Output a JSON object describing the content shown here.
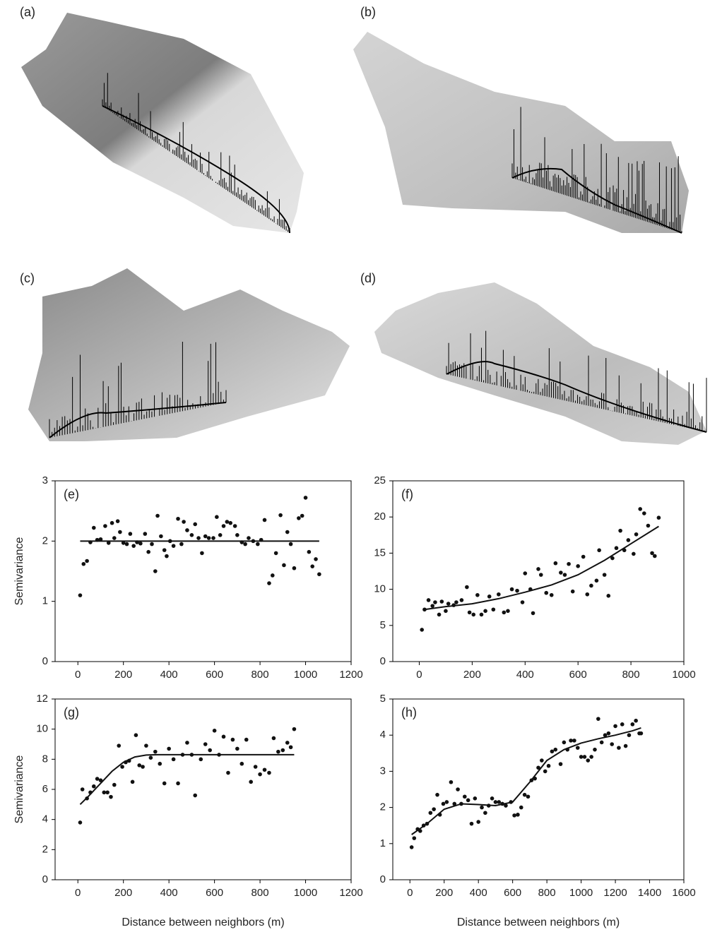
{
  "illustrations": [
    {
      "label": "(a)"
    },
    {
      "label": "(b)"
    },
    {
      "label": "(c)"
    },
    {
      "label": "(d)"
    }
  ],
  "chart_data": [
    {
      "type": "scatter",
      "panel_label": "(e)",
      "y_label": "Semivariance",
      "color": "#111111",
      "xlim": [
        -100,
        1200
      ],
      "xticks": [
        0,
        200,
        400,
        600,
        800,
        1000,
        1200
      ],
      "ylim": [
        0,
        3
      ],
      "yticks": [
        0,
        1,
        2,
        3
      ],
      "points": {
        "x": [
          10,
          25,
          40,
          55,
          70,
          85,
          100,
          120,
          135,
          150,
          160,
          175,
          185,
          200,
          215,
          230,
          245,
          260,
          275,
          295,
          310,
          325,
          340,
          350,
          365,
          380,
          390,
          405,
          420,
          440,
          455,
          465,
          480,
          500,
          515,
          530,
          545,
          560,
          575,
          595,
          610,
          625,
          640,
          655,
          670,
          690,
          700,
          720,
          735,
          750,
          770,
          790,
          805,
          820,
          840,
          855,
          870,
          890,
          905,
          920,
          935,
          950,
          970,
          985,
          1000,
          1015,
          1030,
          1045,
          1060
        ],
        "y": [
          1.1,
          1.62,
          1.67,
          1.98,
          2.22,
          2.02,
          2.03,
          2.25,
          1.97,
          2.3,
          2.05,
          2.33,
          2.15,
          1.97,
          1.95,
          2.12,
          1.92,
          1.98,
          1.96,
          2.12,
          1.82,
          1.95,
          1.5,
          2.42,
          2.08,
          1.85,
          1.75,
          2.0,
          1.92,
          2.37,
          1.95,
          2.32,
          2.18,
          2.1,
          2.28,
          2.05,
          1.8,
          2.08,
          2.05,
          2.05,
          2.4,
          2.1,
          2.25,
          2.32,
          2.3,
          2.25,
          2.1,
          1.98,
          1.95,
          2.05,
          2.0,
          1.95,
          2.02,
          2.35,
          1.3,
          1.43,
          1.8,
          2.43,
          1.6,
          2.15,
          1.95,
          1.55,
          2.38,
          2.42,
          2.72,
          1.82,
          1.58,
          1.7,
          1.45
        ]
      },
      "fit": {
        "x": [
          10,
          1060
        ],
        "y": [
          2.0,
          2.0
        ]
      }
    },
    {
      "type": "scatter",
      "panel_label": "(f)",
      "color": "#111111",
      "xlim": [
        -100,
        1000
      ],
      "xticks": [
        0,
        200,
        400,
        600,
        800,
        1000
      ],
      "ylim": [
        0,
        25
      ],
      "yticks": [
        0,
        5,
        10,
        15,
        20,
        25
      ],
      "points": {
        "x": [
          10,
          20,
          35,
          50,
          60,
          75,
          85,
          100,
          110,
          130,
          140,
          160,
          180,
          190,
          205,
          220,
          235,
          250,
          265,
          280,
          300,
          320,
          335,
          350,
          370,
          390,
          400,
          420,
          430,
          450,
          460,
          480,
          500,
          515,
          535,
          550,
          565,
          580,
          600,
          620,
          635,
          650,
          670,
          680,
          700,
          715,
          730,
          745,
          760,
          775,
          790,
          810,
          820,
          835,
          850,
          865,
          880,
          890,
          905
        ],
        "y": [
          4.4,
          7.2,
          8.5,
          7.7,
          8.2,
          6.5,
          8.3,
          7.0,
          8.0,
          7.8,
          8.2,
          8.5,
          10.3,
          6.8,
          6.5,
          9.2,
          6.5,
          7.0,
          9.0,
          7.2,
          9.3,
          6.8,
          7.0,
          10.0,
          9.8,
          8.2,
          12.2,
          10.0,
          6.7,
          12.8,
          12.0,
          9.5,
          9.2,
          13.6,
          12.3,
          12.0,
          13.5,
          9.7,
          13.2,
          14.5,
          9.3,
          10.5,
          11.2,
          15.4,
          12.0,
          9.1,
          14.3,
          15.7,
          18.1,
          15.4,
          16.8,
          14.9,
          17.6,
          21.1,
          20.5,
          18.8,
          15.0,
          14.6,
          19.9
        ]
      },
      "fit": {
        "x": [
          20,
          100,
          200,
          300,
          400,
          500,
          600,
          700,
          800,
          905
        ],
        "y": [
          7.2,
          7.6,
          8.0,
          8.7,
          9.6,
          10.6,
          12.0,
          14.0,
          16.3,
          18.7
        ]
      }
    },
    {
      "type": "scatter",
      "panel_label": "(g)",
      "y_label": "Semivariance",
      "x_label": "Distance between neighbors (m)",
      "color": "#111111",
      "xlim": [
        -100,
        1200
      ],
      "xticks": [
        0,
        200,
        400,
        600,
        800,
        1000,
        1200
      ],
      "ylim": [
        0,
        12
      ],
      "yticks": [
        0,
        2,
        4,
        6,
        8,
        10,
        12
      ],
      "points": {
        "x": [
          10,
          20,
          40,
          55,
          70,
          85,
          100,
          115,
          130,
          145,
          160,
          180,
          195,
          210,
          225,
          240,
          255,
          270,
          285,
          300,
          320,
          340,
          360,
          380,
          400,
          420,
          440,
          460,
          480,
          500,
          515,
          540,
          560,
          580,
          600,
          620,
          640,
          660,
          680,
          700,
          720,
          740,
          760,
          780,
          800,
          820,
          840,
          860,
          880,
          900,
          920,
          935,
          950
        ],
        "y": [
          3.8,
          6.0,
          5.4,
          5.8,
          6.2,
          6.7,
          6.6,
          5.8,
          5.8,
          5.5,
          6.3,
          8.9,
          7.5,
          7.8,
          7.9,
          6.5,
          9.6,
          7.6,
          7.5,
          8.9,
          8.1,
          8.5,
          7.7,
          6.4,
          8.7,
          8.0,
          6.4,
          8.3,
          9.1,
          8.3,
          5.6,
          8.0,
          9.0,
          8.6,
          9.9,
          8.3,
          9.5,
          7.1,
          9.3,
          8.7,
          7.7,
          9.3,
          6.5,
          7.5,
          7.0,
          7.3,
          7.1,
          9.4,
          8.5,
          8.6,
          9.1,
          8.8,
          10.0
        ]
      },
      "fit": {
        "x": [
          10,
          50,
          100,
          150,
          200,
          250,
          300,
          350,
          400,
          950
        ],
        "y": [
          5.0,
          5.6,
          6.4,
          7.2,
          7.8,
          8.15,
          8.28,
          8.3,
          8.3,
          8.3
        ]
      }
    },
    {
      "type": "scatter",
      "panel_label": "(h)",
      "x_label": "Distance between neighbors (m)",
      "color": "#111111",
      "xlim": [
        -100,
        1600
      ],
      "xticks": [
        0,
        200,
        400,
        600,
        800,
        1000,
        1200,
        1400,
        1600
      ],
      "ylim": [
        0,
        5
      ],
      "yticks": [
        0,
        1,
        2,
        3,
        4,
        5
      ],
      "points": {
        "x": [
          10,
          25,
          45,
          60,
          80,
          100,
          120,
          140,
          160,
          175,
          195,
          215,
          240,
          260,
          280,
          300,
          320,
          340,
          360,
          380,
          400,
          420,
          440,
          460,
          480,
          500,
          520,
          540,
          560,
          590,
          610,
          630,
          650,
          670,
          690,
          710,
          730,
          750,
          770,
          790,
          810,
          830,
          850,
          880,
          900,
          920,
          940,
          960,
          980,
          1000,
          1020,
          1040,
          1060,
          1080,
          1100,
          1120,
          1140,
          1160,
          1180,
          1200,
          1220,
          1240,
          1260,
          1280,
          1300,
          1320,
          1340,
          1350
        ],
        "y": [
          0.9,
          1.15,
          1.4,
          1.35,
          1.5,
          1.55,
          1.85,
          1.95,
          2.35,
          1.8,
          2.1,
          2.15,
          2.7,
          2.1,
          2.5,
          2.1,
          2.3,
          2.2,
          1.55,
          2.25,
          1.6,
          2.0,
          1.85,
          2.05,
          2.25,
          2.15,
          2.15,
          2.1,
          2.05,
          2.15,
          1.78,
          1.8,
          2.0,
          2.35,
          2.3,
          2.75,
          2.8,
          3.1,
          3.3,
          3.0,
          3.15,
          3.55,
          3.6,
          3.2,
          3.8,
          3.6,
          3.85,
          3.85,
          3.65,
          3.4,
          3.4,
          3.3,
          3.4,
          3.6,
          4.45,
          3.8,
          4.0,
          4.05,
          3.75,
          4.25,
          3.65,
          4.3,
          3.7,
          4.0,
          4.3,
          4.4,
          4.05,
          4.05
        ]
      },
      "fit": {
        "x": [
          10,
          100,
          200,
          300,
          400,
          500,
          600,
          700,
          800,
          900,
          1000,
          1100,
          1200,
          1300,
          1350
        ],
        "y": [
          1.25,
          1.55,
          1.95,
          2.1,
          2.08,
          2.05,
          2.15,
          2.7,
          3.3,
          3.6,
          3.78,
          3.9,
          4.0,
          4.12,
          4.2
        ]
      }
    }
  ]
}
